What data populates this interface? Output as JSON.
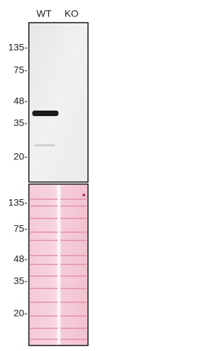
{
  "header": {
    "lanes": [
      "WT",
      "KO"
    ]
  },
  "top_panel": {
    "markers": [
      "135-",
      "75-",
      "48-",
      "35-",
      "20-"
    ]
  },
  "bottom_panel": {
    "markers": [
      "135-",
      "75-",
      "48-",
      "35-",
      "20-"
    ]
  }
}
